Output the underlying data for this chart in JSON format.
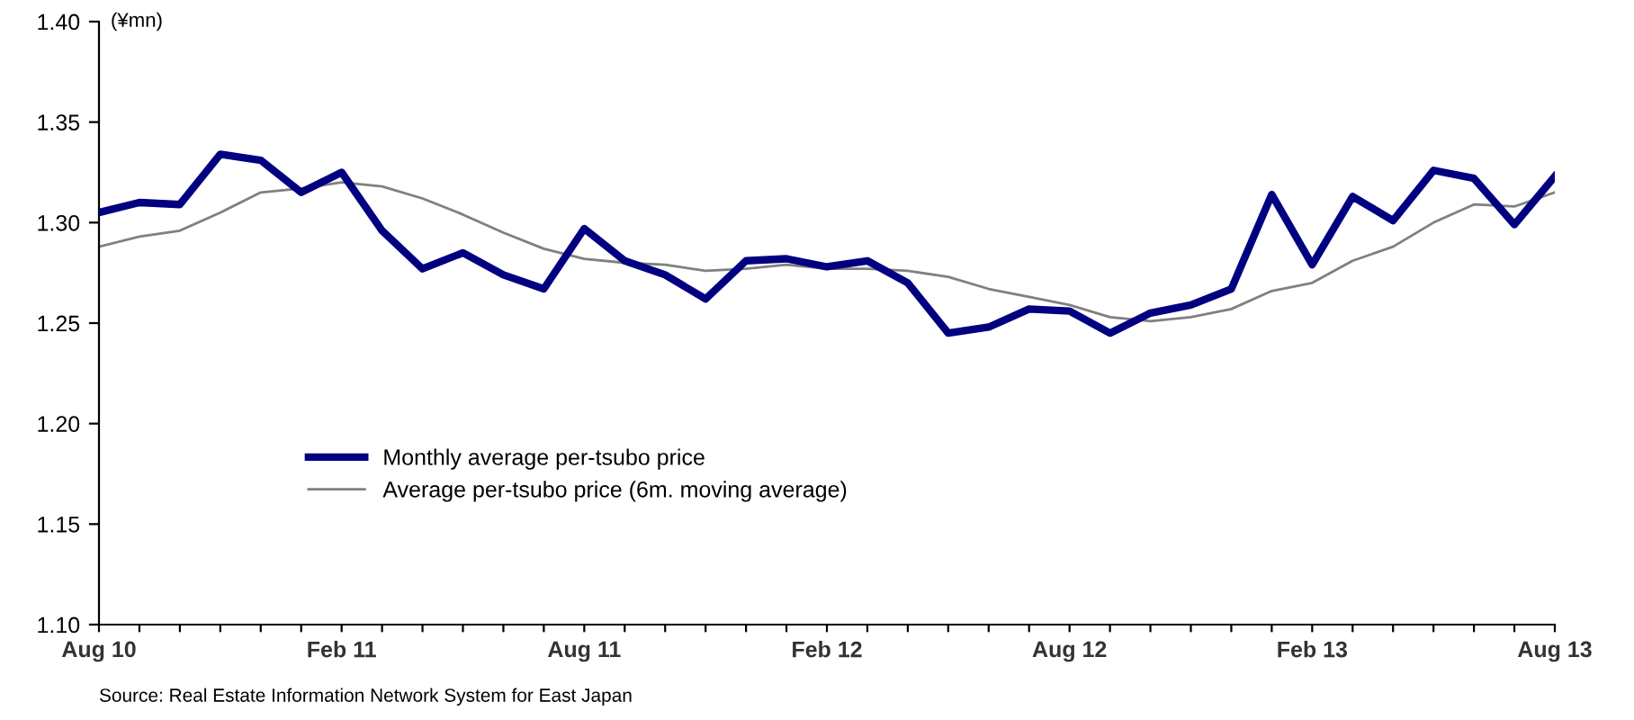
{
  "chart_data": {
    "type": "line",
    "ylabel": "(¥mn)",
    "categories": [
      "Aug 10",
      null,
      null,
      null,
      null,
      null,
      "Feb 11",
      null,
      null,
      null,
      null,
      null,
      "Aug 11",
      null,
      null,
      null,
      null,
      null,
      "Feb 12",
      null,
      null,
      null,
      null,
      null,
      "Aug 12",
      null,
      null,
      null,
      null,
      null,
      "Feb 13",
      null,
      null,
      null,
      null,
      null,
      "Aug 13"
    ],
    "series": [
      {
        "name": "Monthly average per-tsubo price",
        "color": "#000080",
        "values": [
          1.305,
          1.31,
          1.309,
          1.334,
          1.331,
          1.315,
          1.325,
          1.296,
          1.277,
          1.285,
          1.274,
          1.267,
          1.297,
          1.281,
          1.274,
          1.262,
          1.281,
          1.282,
          1.278,
          1.281,
          1.27,
          1.245,
          1.248,
          1.257,
          1.256,
          1.245,
          1.255,
          1.259,
          1.267,
          1.314,
          1.279,
          1.313,
          1.301,
          1.326,
          1.322,
          1.299,
          1.323
        ]
      },
      {
        "name": "Average per-tsubo price (6m. moving average)",
        "color": "#808080",
        "values": [
          1.288,
          1.293,
          1.296,
          1.305,
          1.315,
          1.317,
          1.32,
          1.318,
          1.312,
          1.304,
          1.295,
          1.287,
          1.282,
          1.28,
          1.279,
          1.276,
          1.277,
          1.279,
          1.277,
          1.277,
          1.276,
          1.273,
          1.267,
          1.263,
          1.259,
          1.253,
          1.251,
          1.253,
          1.257,
          1.266,
          1.27,
          1.281,
          1.288,
          1.3,
          1.309,
          1.308,
          1.315
        ]
      }
    ],
    "ylim": [
      1.1,
      1.4
    ],
    "yticks": [
      {
        "value": 1.1,
        "label": "1.10"
      },
      {
        "value": 1.15,
        "label": "1.15"
      },
      {
        "value": 1.2,
        "label": "1.20"
      },
      {
        "value": 1.25,
        "label": "1.25"
      },
      {
        "value": 1.3,
        "label": "1.30"
      },
      {
        "value": 1.35,
        "label": "1.35"
      },
      {
        "value": 1.4,
        "label": "1.40"
      }
    ],
    "grid": false,
    "legend": "bottom left",
    "annotations": [
      "Source: Real Estate Information Network System for East Japan"
    ]
  }
}
